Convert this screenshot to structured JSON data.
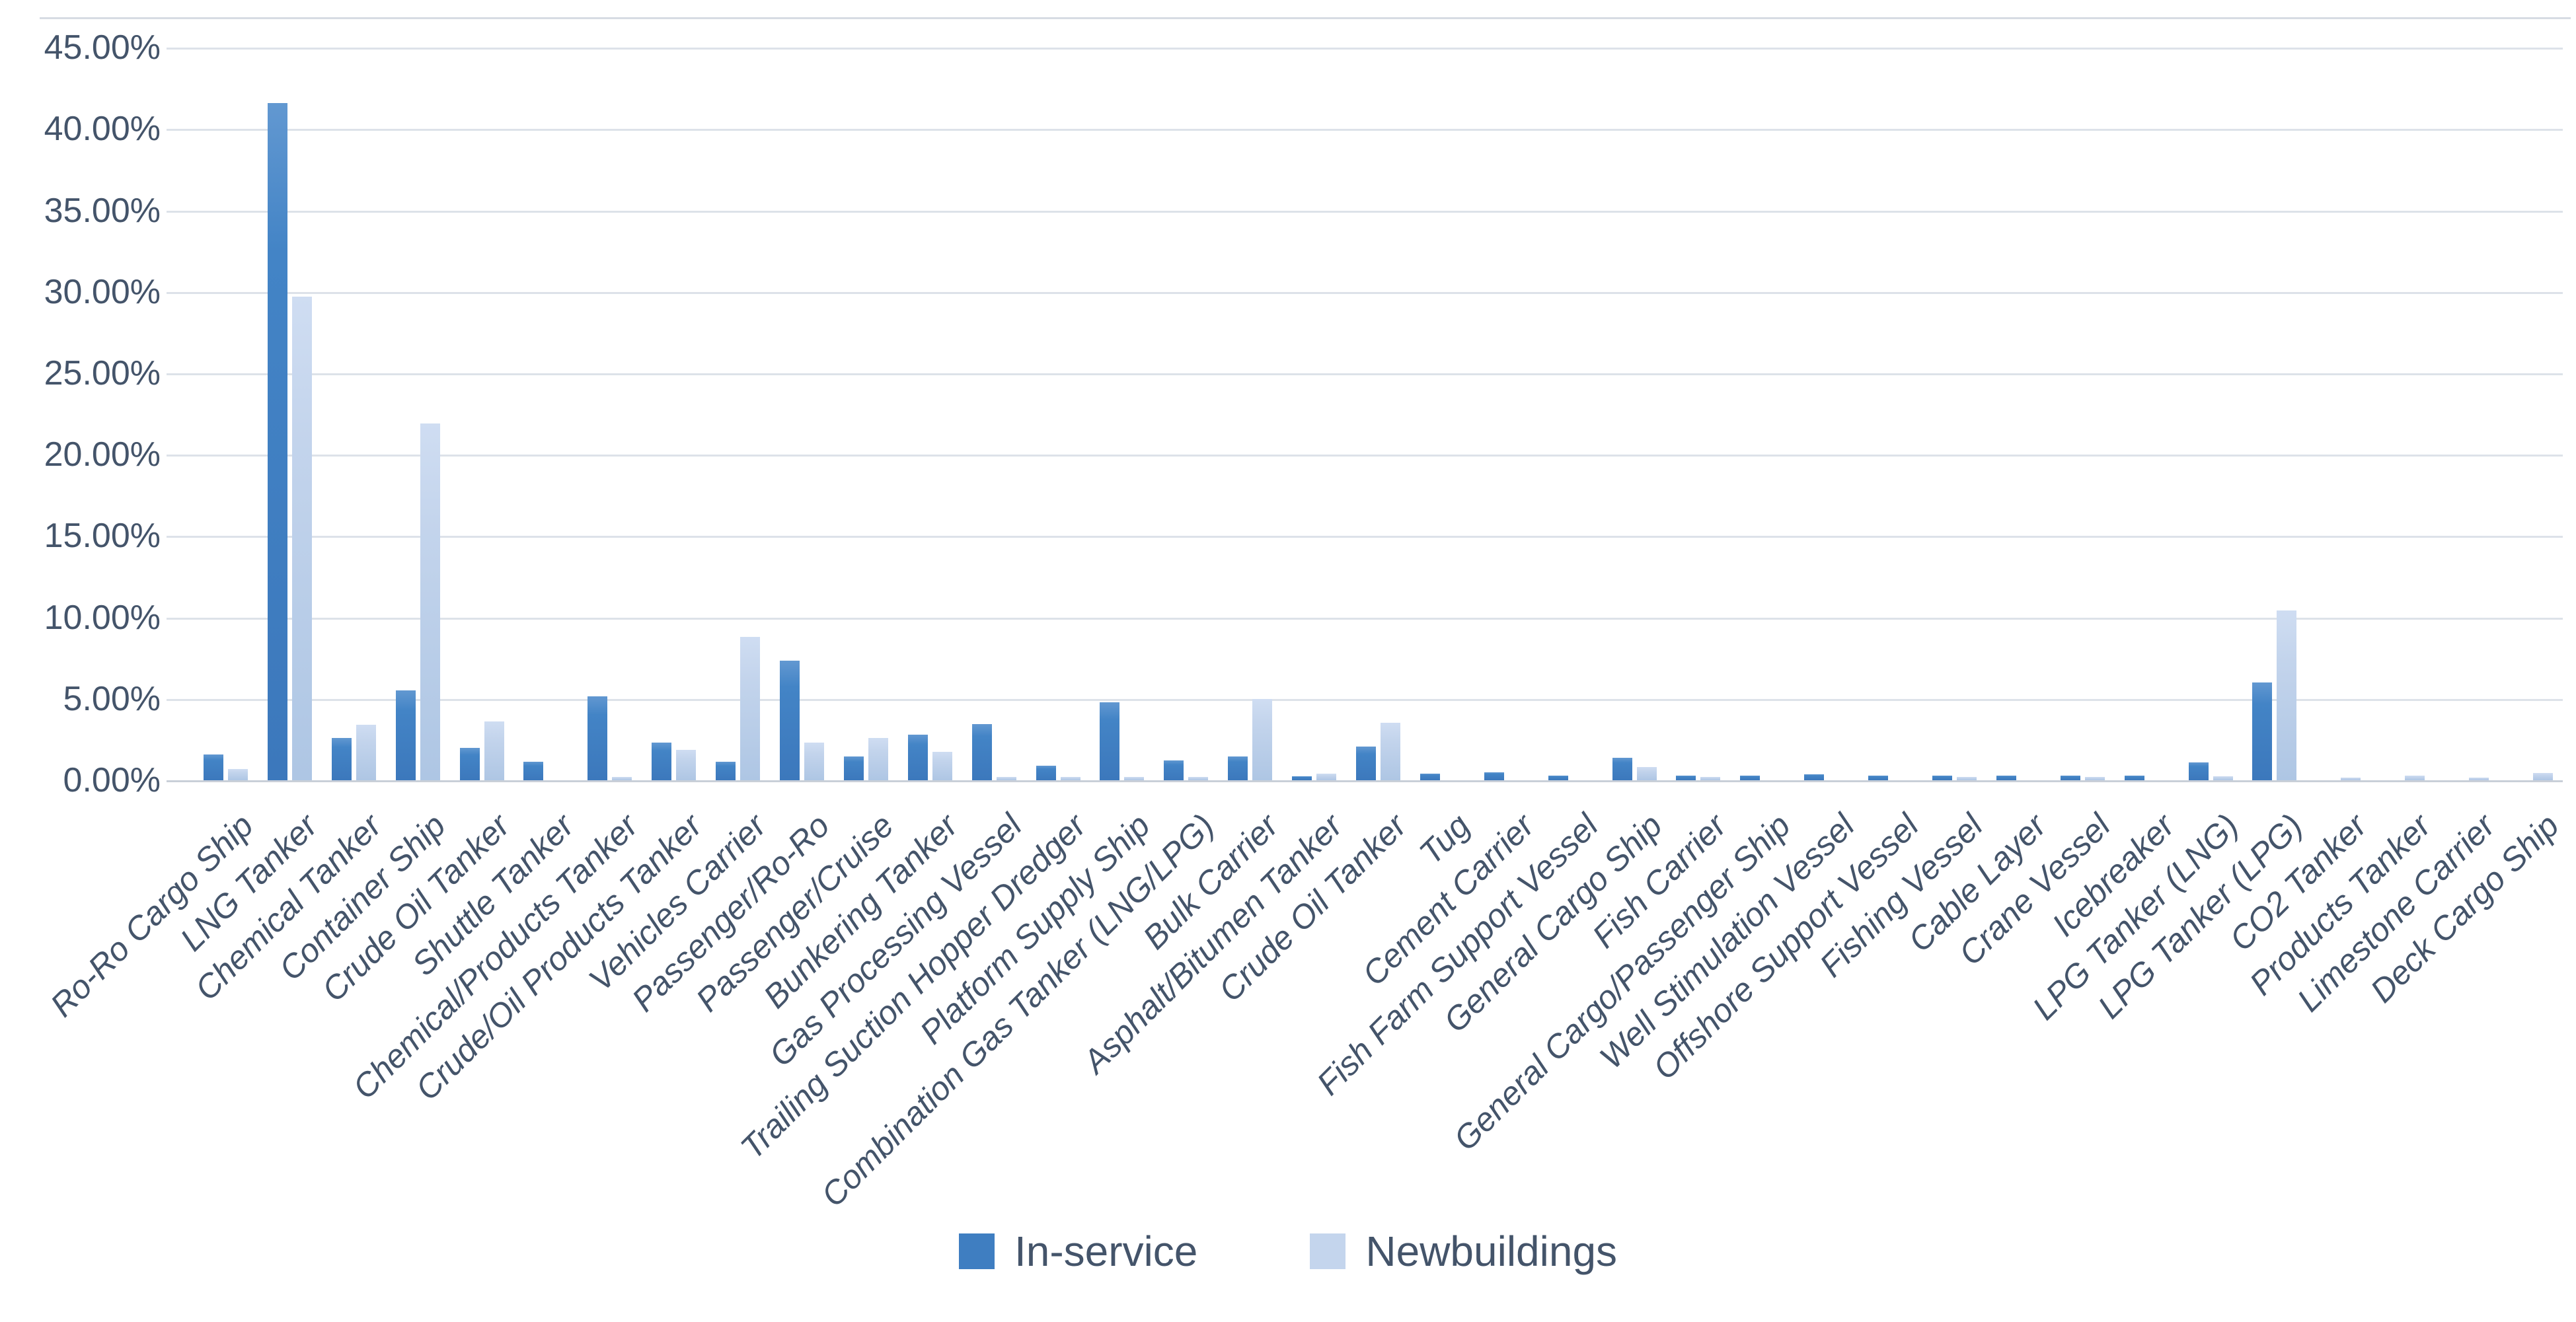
{
  "chart_data": {
    "type": "bar",
    "title": "",
    "xlabel": "",
    "ylabel": "",
    "ylim": [
      0,
      45
    ],
    "grid": true,
    "legend_position": "bottom",
    "y_ticks": [
      "0.00%",
      "5.00%",
      "10.00%",
      "15.00%",
      "20.00%",
      "25.00%",
      "30.00%",
      "35.00%",
      "40.00%",
      "45.00%"
    ],
    "categories": [
      "Ro-Ro Cargo Ship",
      "LNG Tanker",
      "Chemical Tanker",
      "Container Ship",
      "Crude Oil Tanker",
      "Shuttle Tanker",
      "Chemical/Products Tanker",
      "Crude/Oil Products Tanker",
      "Vehicles Carrier",
      "Passenger/Ro-Ro",
      "Passenger/Cruise",
      "Bunkering Tanker",
      "Gas Processing Vessel",
      "Trailing Suction Hopper Dredger",
      "Platform Supply Ship",
      "Combination Gas Tanker (LNG/LPG)",
      "Bulk Carrier",
      "Asphalt/Bitumen Tanker",
      "Crude Oil Tanker",
      "Tug",
      "Cement Carrier",
      "Fish Farm Support Vessel",
      "General Cargo Ship",
      "Fish Carrier",
      "General Cargo/Passenger Ship",
      "Well Stimulation Vessel",
      "Offshore Support Vessel",
      "Fishing Vessel",
      "Cable Layer",
      "Crane Vessel",
      "Icebreaker",
      "LPG Tanker (LNG)",
      "LPG Tanker (LPG)",
      "CO2 Tanker",
      "Products Tanker",
      "Limestone Carrier",
      "Deck Cargo Ship"
    ],
    "series": [
      {
        "name": "In-service",
        "color": "#3f7ec1",
        "values": [
          1.6,
          41.6,
          2.6,
          5.5,
          2.0,
          1.15,
          5.15,
          2.3,
          1.15,
          7.35,
          1.45,
          2.8,
          3.45,
          0.9,
          4.8,
          1.2,
          1.45,
          0.25,
          2.05,
          0.4,
          0.5,
          0.3,
          1.4,
          0.3,
          0.3,
          0.35,
          0.3,
          0.3,
          0.3,
          0.3,
          0.3,
          1.1,
          6.0,
          0,
          0,
          0,
          0
        ]
      },
      {
        "name": "Newbuildings",
        "color": "#c4d5ed",
        "values": [
          0.7,
          29.7,
          3.4,
          21.9,
          3.6,
          0,
          0.2,
          1.85,
          8.8,
          2.3,
          2.6,
          1.75,
          0.2,
          0.2,
          0.2,
          0.2,
          5.0,
          0.4,
          3.55,
          0,
          0,
          0,
          0.8,
          0.2,
          0,
          0,
          0,
          0.2,
          0,
          0.2,
          0,
          0.25,
          10.45,
          0.17,
          0.3,
          0.17,
          0.45
        ]
      }
    ]
  }
}
